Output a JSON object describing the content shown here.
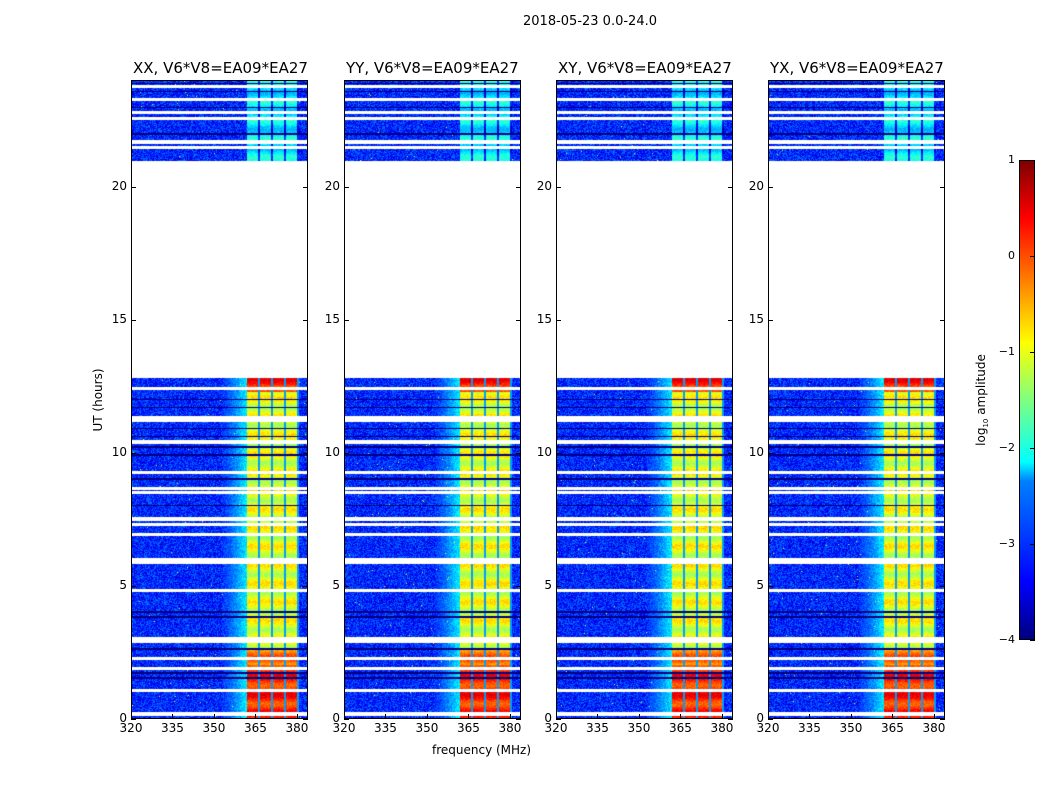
{
  "chart_data": {
    "type": "heatmap",
    "title": "2018-05-23 0.0-24.0",
    "xlabel": "frequency (MHz)",
    "ylabel": "UT (hours)",
    "xlim": [
      320,
      384
    ],
    "ylim": [
      0,
      24
    ],
    "xticks": [
      "320",
      "335",
      "350",
      "365",
      "380"
    ],
    "xtick_values": [
      320,
      335,
      350,
      365,
      380
    ],
    "yticks": [
      "0",
      "5",
      "10",
      "15",
      "20"
    ],
    "ytick_values": [
      0,
      5,
      10,
      15,
      20
    ],
    "colormap": "jet",
    "clim": [
      -4,
      1
    ],
    "colorbar_label": "log10 amplitude",
    "colorbar_label_base": "log",
    "colorbar_label_sub": "10",
    "colorbar_label_rest": " amplitude",
    "colorbar_ticks": [
      "1",
      "0",
      "−1",
      "−2",
      "−3",
      "−4"
    ],
    "colorbar_tick_values": [
      1,
      0,
      -1,
      -2,
      -3,
      -4
    ],
    "data_time_ranges": [
      [
        0,
        12.8
      ],
      [
        21,
        24
      ]
    ],
    "background_level": -3.2,
    "signal_band_mhz": [
      362,
      381
    ],
    "signal_levels": {
      "0-2h": 0.2,
      "2-12.8h": -1.0,
      "21-24h": -2.2
    },
    "panels": [
      {
        "title": "XX, V6*V8=EA09*EA27"
      },
      {
        "title": "YY, V6*V8=EA09*EA27"
      },
      {
        "title": "XY, V6*V8=EA09*EA27"
      },
      {
        "title": "YX, V6*V8=EA09*EA27"
      }
    ]
  }
}
